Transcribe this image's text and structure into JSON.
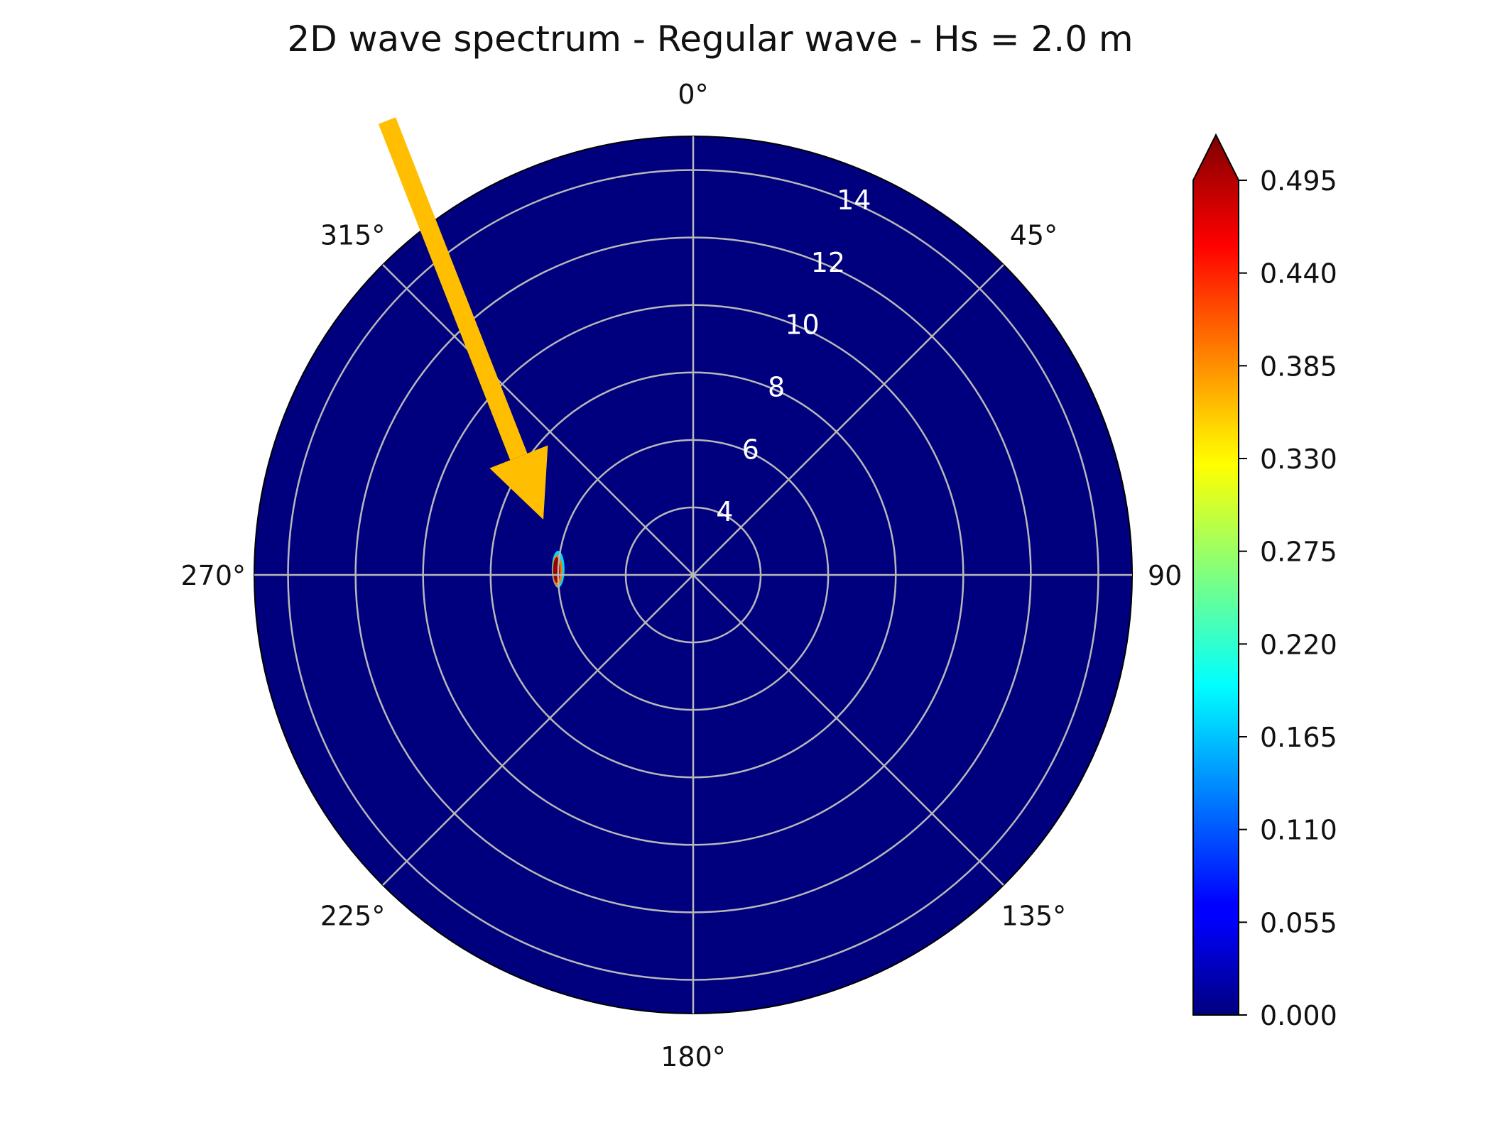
{
  "chart_data": {
    "type": "heatmap",
    "projection": "polar",
    "title": "2D wave spectrum - Regular wave - Hs = 2.0 m",
    "theta_direction": "clockwise",
    "theta_zero": "north",
    "angle_tick_labels": [
      "0°",
      "45°",
      "90",
      "135°",
      "180°",
      "225°",
      "270°",
      "315°"
    ],
    "angle_tick_values": [
      0,
      45,
      90,
      135,
      180,
      225,
      270,
      315
    ],
    "radial_tick_labels": [
      "4",
      "6",
      "8",
      "10",
      "12",
      "14"
    ],
    "radial_tick_values": [
      4,
      6,
      8,
      10,
      12,
      14
    ],
    "radial_range": [
      2,
      15
    ],
    "grid": true,
    "background_value": 0.0,
    "peak": {
      "direction_deg": 270,
      "radius": 6.0,
      "value": 0.495
    },
    "colormap": "jet",
    "colorbar": {
      "ticks": [
        "0.000",
        "0.055",
        "0.110",
        "0.165",
        "0.220",
        "0.275",
        "0.330",
        "0.385",
        "0.440",
        "0.495"
      ],
      "range": [
        0.0,
        0.495
      ],
      "extend": "max"
    },
    "annotation": {
      "type": "arrow",
      "color": "#ffbf00",
      "points_to": "spectral peak"
    }
  }
}
